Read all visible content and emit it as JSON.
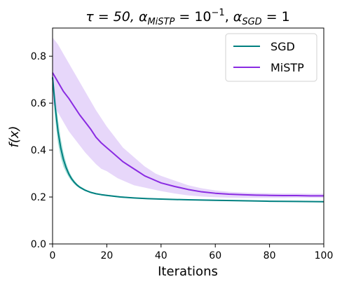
{
  "chart_data": {
    "type": "line",
    "title_parts": {
      "tau": "τ = 50, ",
      "alpha": "α",
      "mistp_sub": "MiSTP",
      "eq1": " = 10",
      "exp": "−1",
      "comma": ", ",
      "alpha2": "α",
      "sgd_sub": "SGD",
      "eq2": " = 1"
    },
    "xlabel": "Iterations",
    "ylabel": "f(x)",
    "xlim": [
      0,
      100
    ],
    "ylim": [
      0.0,
      0.92
    ],
    "xticks": [
      0,
      20,
      40,
      60,
      80,
      100
    ],
    "yticks": [
      0.0,
      0.2,
      0.4,
      0.6,
      0.8
    ],
    "xtick_labels": [
      "0",
      "20",
      "40",
      "60",
      "80",
      "100"
    ],
    "ytick_labels": [
      "0.0",
      "0.2",
      "0.4",
      "0.6",
      "0.8"
    ],
    "grid": false,
    "legend_position": "top-right",
    "series": [
      {
        "name": "SGD",
        "color": "#008080",
        "band_color": "#3cb8a8",
        "x": [
          0,
          1,
          2,
          3,
          4,
          5,
          6,
          7,
          8,
          9,
          10,
          12,
          14,
          16,
          18,
          20,
          25,
          30,
          35,
          40,
          50,
          60,
          70,
          80,
          90,
          100
        ],
        "y": [
          0.71,
          0.58,
          0.48,
          0.41,
          0.36,
          0.325,
          0.298,
          0.278,
          0.263,
          0.251,
          0.242,
          0.229,
          0.22,
          0.214,
          0.21,
          0.207,
          0.2,
          0.196,
          0.193,
          0.191,
          0.188,
          0.186,
          0.184,
          0.182,
          0.181,
          0.18
        ],
        "upper": [
          0.74,
          0.63,
          0.53,
          0.45,
          0.39,
          0.345,
          0.312,
          0.288,
          0.271,
          0.257,
          0.247,
          0.233,
          0.223,
          0.217,
          0.213,
          0.21,
          0.203,
          0.198,
          0.195,
          0.193,
          0.19,
          0.188,
          0.186,
          0.184,
          0.183,
          0.182
        ],
        "lower": [
          0.68,
          0.53,
          0.43,
          0.37,
          0.33,
          0.305,
          0.284,
          0.268,
          0.255,
          0.245,
          0.237,
          0.225,
          0.217,
          0.211,
          0.207,
          0.204,
          0.197,
          0.194,
          0.191,
          0.189,
          0.186,
          0.184,
          0.182,
          0.18,
          0.179,
          0.178
        ]
      },
      {
        "name": "MiSTP",
        "color": "#8a2be2",
        "band_color": "#c9a6f5",
        "x": [
          0,
          2,
          4,
          6,
          8,
          10,
          12,
          14,
          16,
          18,
          20,
          22,
          24,
          26,
          28,
          30,
          32,
          34,
          36,
          38,
          40,
          45,
          50,
          55,
          60,
          65,
          70,
          75,
          80,
          85,
          90,
          95,
          100
        ],
        "y": [
          0.73,
          0.69,
          0.65,
          0.62,
          0.585,
          0.55,
          0.52,
          0.49,
          0.455,
          0.43,
          0.41,
          0.39,
          0.37,
          0.35,
          0.335,
          0.32,
          0.305,
          0.29,
          0.28,
          0.27,
          0.26,
          0.245,
          0.232,
          0.222,
          0.216,
          0.212,
          0.21,
          0.208,
          0.207,
          0.206,
          0.206,
          0.205,
          0.205
        ],
        "upper": [
          0.88,
          0.85,
          0.81,
          0.77,
          0.73,
          0.69,
          0.65,
          0.61,
          0.57,
          0.535,
          0.5,
          0.47,
          0.44,
          0.41,
          0.39,
          0.37,
          0.35,
          0.33,
          0.315,
          0.3,
          0.29,
          0.27,
          0.25,
          0.237,
          0.228,
          0.222,
          0.219,
          0.217,
          0.216,
          0.215,
          0.215,
          0.214,
          0.214
        ],
        "lower": [
          0.6,
          0.56,
          0.52,
          0.48,
          0.45,
          0.42,
          0.39,
          0.365,
          0.34,
          0.32,
          0.31,
          0.295,
          0.28,
          0.27,
          0.26,
          0.25,
          0.245,
          0.24,
          0.235,
          0.23,
          0.225,
          0.215,
          0.207,
          0.202,
          0.199,
          0.197,
          0.196,
          0.196,
          0.196,
          0.196,
          0.197,
          0.197,
          0.197
        ]
      }
    ]
  }
}
